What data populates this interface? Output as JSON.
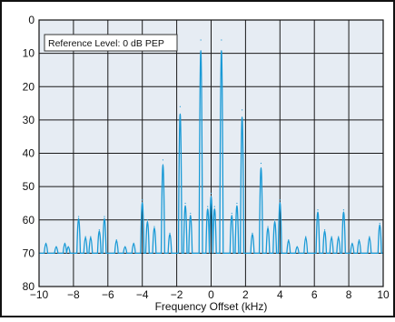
{
  "chart_data": {
    "type": "line",
    "title": "",
    "xlabel": "Frequency Offset (kHz)",
    "ylabel": "",
    "annotation": "Reference Level: 0 dB PEP",
    "xlim": [
      -10,
      10
    ],
    "ylim": [
      0,
      80
    ],
    "y_inverted": true,
    "grid": true,
    "x_ticks": [
      -10,
      -8,
      -6,
      -4,
      -2,
      0,
      2,
      4,
      6,
      8,
      10
    ],
    "x_tick_labels": [
      "−10",
      "−8",
      "−6",
      "−4",
      "−2",
      "0",
      "2",
      "4",
      "6",
      "8",
      "10"
    ],
    "y_ticks": [
      0,
      10,
      20,
      30,
      40,
      50,
      60,
      70,
      80
    ],
    "y_tick_labels": [
      "0",
      "10",
      "20",
      "30",
      "40",
      "50",
      "60",
      "70",
      "80"
    ],
    "series": [
      {
        "color": "#1a9ad6",
        "baseline": 70,
        "peaks": [
          {
            "x": -9.6,
            "y": 67
          },
          {
            "x": -9.0,
            "y": 68
          },
          {
            "x": -8.5,
            "y": 67
          },
          {
            "x": -8.3,
            "y": 68
          },
          {
            "x": -7.7,
            "y": 59
          },
          {
            "x": -7.3,
            "y": 65
          },
          {
            "x": -7.0,
            "y": 65
          },
          {
            "x": -6.5,
            "y": 63
          },
          {
            "x": -6.2,
            "y": 59
          },
          {
            "x": -5.5,
            "y": 66
          },
          {
            "x": -5.0,
            "y": 68
          },
          {
            "x": -4.5,
            "y": 67
          },
          {
            "x": -4.0,
            "y": 54
          },
          {
            "x": -3.7,
            "y": 60
          },
          {
            "x": -3.3,
            "y": 62
          },
          {
            "x": -2.8,
            "y": 42
          },
          {
            "x": -2.4,
            "y": 64
          },
          {
            "x": -1.8,
            "y": 26
          },
          {
            "x": -1.5,
            "y": 55
          },
          {
            "x": -1.2,
            "y": 58
          },
          {
            "x": -0.6,
            "y": 6
          },
          {
            "x": -0.2,
            "y": 56
          },
          {
            "x": 0.0,
            "y": 52
          },
          {
            "x": 0.2,
            "y": 56
          },
          {
            "x": 0.6,
            "y": 6
          },
          {
            "x": 1.2,
            "y": 58
          },
          {
            "x": 1.5,
            "y": 55
          },
          {
            "x": 1.8,
            "y": 27
          },
          {
            "x": 2.4,
            "y": 64
          },
          {
            "x": 2.9,
            "y": 43
          },
          {
            "x": 3.3,
            "y": 62
          },
          {
            "x": 3.7,
            "y": 60
          },
          {
            "x": 4.0,
            "y": 54
          },
          {
            "x": 4.5,
            "y": 66
          },
          {
            "x": 5.0,
            "y": 68
          },
          {
            "x": 5.5,
            "y": 65
          },
          {
            "x": 6.2,
            "y": 57
          },
          {
            "x": 6.6,
            "y": 63
          },
          {
            "x": 7.0,
            "y": 65
          },
          {
            "x": 7.4,
            "y": 65
          },
          {
            "x": 7.7,
            "y": 57
          },
          {
            "x": 8.2,
            "y": 67
          },
          {
            "x": 8.6,
            "y": 66
          },
          {
            "x": 9.2,
            "y": 65
          },
          {
            "x": 9.8,
            "y": 61
          }
        ]
      }
    ]
  }
}
